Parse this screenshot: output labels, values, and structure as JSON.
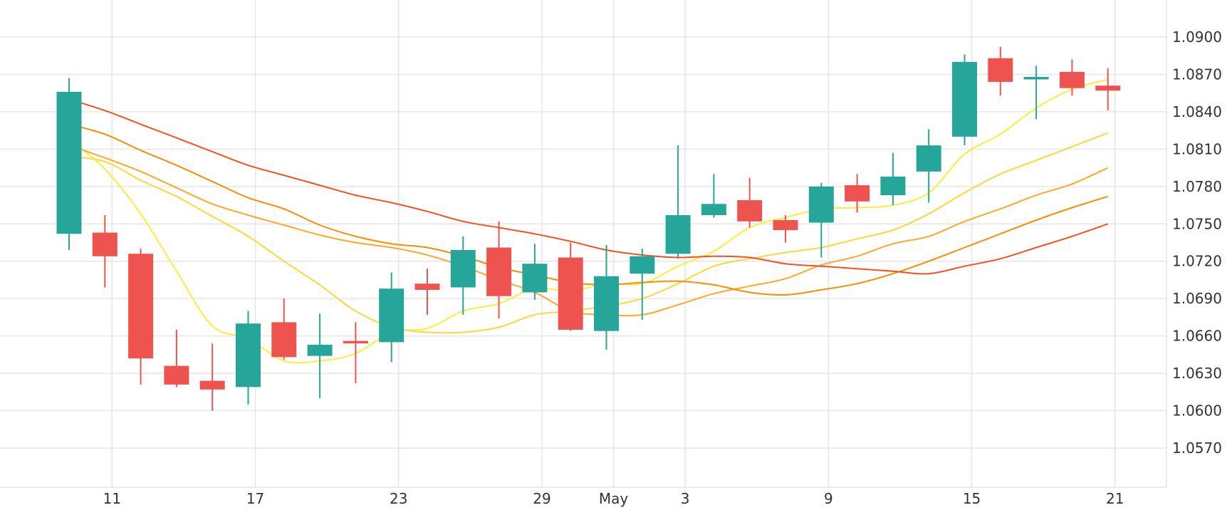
{
  "chart_data": {
    "type": "candlestick",
    "title": "",
    "xlabel": "",
    "ylabel": "",
    "grid": true,
    "ylim": [
      1.054,
      1.094
    ],
    "yticks": [
      "1.0900",
      "1.0870",
      "1.0840",
      "1.0810",
      "1.0780",
      "1.0750",
      "1.0720",
      "1.0690",
      "1.0660",
      "1.0630",
      "1.0600",
      "1.0570"
    ],
    "xticks": [
      {
        "label": "11",
        "index": 1.2
      },
      {
        "label": "17",
        "index": 5.2
      },
      {
        "label": "23",
        "index": 9.2
      },
      {
        "label": "29",
        "index": 13.2
      },
      {
        "label": "May",
        "index": 15.2
      },
      {
        "label": "3",
        "index": 17.2
      },
      {
        "label": "9",
        "index": 21.2
      },
      {
        "label": "15",
        "index": 25.2
      },
      {
        "label": "21",
        "index": 29.2
      }
    ],
    "candles": [
      {
        "open": 1.0742,
        "high": 1.0867,
        "low": 1.0729,
        "close": 1.0856
      },
      {
        "open": 1.0743,
        "high": 1.0757,
        "low": 1.0699,
        "close": 1.0724
      },
      {
        "open": 1.0726,
        "high": 1.073,
        "low": 1.0621,
        "close": 1.0642
      },
      {
        "open": 1.0636,
        "high": 1.0665,
        "low": 1.0619,
        "close": 1.0621
      },
      {
        "open": 1.0624,
        "high": 1.0654,
        "low": 1.06,
        "close": 1.0617
      },
      {
        "open": 1.0619,
        "high": 1.068,
        "low": 1.0605,
        "close": 1.067
      },
      {
        "open": 1.0671,
        "high": 1.069,
        "low": 1.0641,
        "close": 1.0643
      },
      {
        "open": 1.0644,
        "high": 1.0678,
        "low": 1.061,
        "close": 1.0653
      },
      {
        "open": 1.0656,
        "high": 1.0671,
        "low": 1.0622,
        "close": 1.0654
      },
      {
        "open": 1.0655,
        "high": 1.0711,
        "low": 1.0639,
        "close": 1.0698
      },
      {
        "open": 1.0702,
        "high": 1.0714,
        "low": 1.0677,
        "close": 1.0697
      },
      {
        "open": 1.0699,
        "high": 1.074,
        "low": 1.0677,
        "close": 1.0729
      },
      {
        "open": 1.0731,
        "high": 1.0752,
        "low": 1.0674,
        "close": 1.0692
      },
      {
        "open": 1.0695,
        "high": 1.0734,
        "low": 1.0689,
        "close": 1.0718
      },
      {
        "open": 1.0723,
        "high": 1.0735,
        "low": 1.0664,
        "close": 1.0665
      },
      {
        "open": 1.0664,
        "high": 1.0733,
        "low": 1.0649,
        "close": 1.0708
      },
      {
        "open": 1.071,
        "high": 1.073,
        "low": 1.0673,
        "close": 1.0724
      },
      {
        "open": 1.0726,
        "high": 1.0813,
        "low": 1.0722,
        "close": 1.0757
      },
      {
        "open": 1.0757,
        "high": 1.079,
        "low": 1.0755,
        "close": 1.0766
      },
      {
        "open": 1.0769,
        "high": 1.0787,
        "low": 1.0747,
        "close": 1.0752
      },
      {
        "open": 1.0753,
        "high": 1.0757,
        "low": 1.0735,
        "close": 1.0745
      },
      {
        "open": 1.0751,
        "high": 1.0783,
        "low": 1.0723,
        "close": 1.078
      },
      {
        "open": 1.0781,
        "high": 1.079,
        "low": 1.0759,
        "close": 1.0768
      },
      {
        "open": 1.0773,
        "high": 1.0807,
        "low": 1.0765,
        "close": 1.0788
      },
      {
        "open": 1.0792,
        "high": 1.0826,
        "low": 1.0767,
        "close": 1.0813
      },
      {
        "open": 1.082,
        "high": 1.0886,
        "low": 1.0813,
        "close": 1.088
      },
      {
        "open": 1.0883,
        "high": 1.0892,
        "low": 1.0853,
        "close": 1.0864
      },
      {
        "open": 1.0866,
        "high": 1.0877,
        "low": 1.0834,
        "close": 1.0868
      },
      {
        "open": 1.0872,
        "high": 1.0882,
        "low": 1.0853,
        "close": 1.0859
      },
      {
        "open": 1.0861,
        "high": 1.0875,
        "low": 1.0841,
        "close": 1.0857
      }
    ],
    "moving_averages": [
      {
        "color": "#ffeb3b",
        "values": [
          1.0818,
          1.0794,
          1.0758,
          1.0712,
          1.0668,
          1.0658,
          1.064,
          1.064,
          1.0646,
          1.0663,
          1.0666,
          1.068,
          1.0686,
          1.0698,
          1.0696,
          1.0702,
          1.0702,
          1.0716,
          1.0728,
          1.0747,
          1.0755,
          1.0762,
          1.0763,
          1.0765,
          1.0775,
          1.0806,
          1.0822,
          1.0843,
          1.0858,
          1.0866
        ]
      },
      {
        "color": "#fdd835",
        "values": [
          1.0804,
          1.08,
          1.0785,
          1.0772,
          1.0756,
          1.074,
          1.072,
          1.0701,
          1.068,
          1.0667,
          1.0663,
          1.0663,
          1.0667,
          1.0677,
          1.068,
          1.0684,
          1.069,
          1.0702,
          1.0716,
          1.0722,
          1.0727,
          1.0731,
          1.0738,
          1.0745,
          1.0758,
          1.0775,
          1.079,
          1.0801,
          1.0812,
          1.0823
        ]
      },
      {
        "color": "#ffa726",
        "values": [
          1.0813,
          1.0803,
          1.0792,
          1.0779,
          1.0766,
          1.0757,
          1.0749,
          1.0741,
          1.0735,
          1.0731,
          1.0725,
          1.0716,
          1.0705,
          1.0695,
          1.068,
          1.0677,
          1.0677,
          1.0685,
          1.0694,
          1.07,
          1.0706,
          1.0717,
          1.0724,
          1.0734,
          1.074,
          1.0752,
          1.0762,
          1.0773,
          1.0782,
          1.0795
        ]
      },
      {
        "color": "#fb8c00",
        "values": [
          1.083,
          1.0822,
          1.0809,
          1.0797,
          1.0784,
          1.0771,
          1.0762,
          1.0749,
          1.074,
          1.0734,
          1.0731,
          1.0724,
          1.0715,
          1.0709,
          1.0703,
          1.0701,
          1.0703,
          1.0704,
          1.0701,
          1.0695,
          1.0693,
          1.0697,
          1.0702,
          1.071,
          1.072,
          1.0731,
          1.0742,
          1.0753,
          1.0763,
          1.0772
        ]
      },
      {
        "color": "#f4511e",
        "values": [
          1.085,
          1.0841,
          1.083,
          1.0819,
          1.0808,
          1.0797,
          1.0789,
          1.0781,
          1.0773,
          1.0767,
          1.076,
          1.0752,
          1.0747,
          1.0742,
          1.0736,
          1.0729,
          1.0725,
          1.0723,
          1.0724,
          1.0723,
          1.0718,
          1.0716,
          1.0714,
          1.0712,
          1.071,
          1.0716,
          1.0722,
          1.0731,
          1.074,
          1.075
        ]
      }
    ],
    "up_color": "#26a69a",
    "down_color": "#ef5350",
    "grid_color": "#e6e6e6"
  }
}
